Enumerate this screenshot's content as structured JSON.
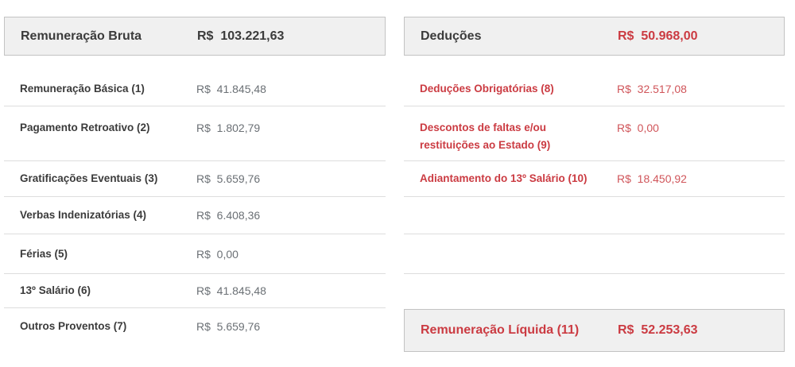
{
  "colors": {
    "box_background": "#f0f0f0",
    "box_border": "#c3c3c3",
    "divider": "#dddddd",
    "dark_text": "#3b3b3b",
    "gray_value": "#6b7075",
    "red_strong": "#cb3b42",
    "red_value": "#d0555a"
  },
  "left_panel": {
    "header": {
      "label": "Remuneração Bruta",
      "value": "R$  103.221,63"
    },
    "rows": [
      {
        "label": "Remuneração Básica (1)",
        "value": "R$  41.845,48"
      },
      {
        "label": "Pagamento Retroativo (2)",
        "value": "R$  1.802,79"
      },
      {
        "label": "Gratificações Eventuais (3)",
        "value": "R$  5.659,76"
      },
      {
        "label": "Verbas Indenizatórias (4)",
        "value": "R$  6.408,36"
      },
      {
        "label": "Férias (5)",
        "value": "R$  0,00"
      },
      {
        "label": "13º Salário (6)",
        "value": "R$  41.845,48"
      },
      {
        "label": "Outros Proventos (7)",
        "value": "R$  5.659,76"
      }
    ]
  },
  "right_panel": {
    "header": {
      "label": "Deduções",
      "value": "R$  50.968,00"
    },
    "rows": [
      {
        "label": "Deduções Obrigatórias (8)",
        "value": "R$  32.517,08"
      },
      {
        "label": "Descontos de faltas e/ou restituições ao Estado (9)",
        "value": "R$  0,00"
      },
      {
        "label": "Adiantamento do 13º Salário (10)",
        "value": "R$  18.450,92"
      }
    ],
    "footer": {
      "label": "Remuneração Líquida (11)",
      "value": "R$  52.253,63"
    }
  }
}
